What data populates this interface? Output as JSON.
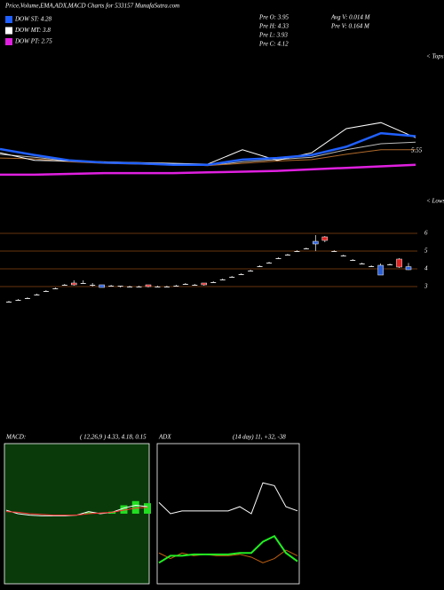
{
  "chart_data": [
    {
      "type": "candlestick",
      "title": "Price,Volume,EMA,ADX,MACD Charts for 533157 MunafaSutra.com",
      "legend": [
        {
          "text": "DOW ST: 4.28",
          "color": "#2060ff"
        },
        {
          "text": "DOW MT: 3.8",
          "color": "#ffffff"
        },
        {
          "text": "DOW PT: 2.75",
          "color": "#e020e0"
        }
      ],
      "info": [
        "Pre  O: 3.95",
        "Pre  H: 4.33",
        "Pre  L: 3.93",
        "Pre  C: 4.12"
      ],
      "volume_info": [
        "Avg V: 0.014  M",
        "Pre  V: 0.164  M"
      ],
      "up_color": "#2a5fd8",
      "down_color": "#e02020",
      "open": [
        2.1,
        2.2,
        2.3,
        2.5,
        2.7,
        2.85,
        3.05,
        3.2,
        3.15,
        3.1,
        2.95,
        3.05,
        3.05,
        3.0,
        3.0,
        3.1,
        3.0,
        3.0,
        3.0,
        3.1,
        3.05,
        3.2,
        3.2,
        3.35,
        3.5,
        3.65,
        3.85,
        4.1,
        4.3,
        4.55,
        4.75,
        4.95,
        5.1,
        5.4,
        5.8,
        5.0,
        4.75,
        4.5,
        4.3,
        4.15,
        3.65,
        4.25,
        4.55,
        3.95
      ],
      "high": [
        2.2,
        2.3,
        2.4,
        2.6,
        2.8,
        2.95,
        3.15,
        3.35,
        3.35,
        3.2,
        3.1,
        3.1,
        3.05,
        3.05,
        3.05,
        3.1,
        3.05,
        3.05,
        3.1,
        3.2,
        3.15,
        3.2,
        3.3,
        3.45,
        3.6,
        3.75,
        3.95,
        4.2,
        4.4,
        4.65,
        4.85,
        5.05,
        5.2,
        5.9,
        5.85,
        5.05,
        4.8,
        4.55,
        4.35,
        4.2,
        4.3,
        4.3,
        4.6,
        4.33
      ],
      "low": [
        2.1,
        2.2,
        2.3,
        2.5,
        2.7,
        2.85,
        3.05,
        3.05,
        3.15,
        3.0,
        2.95,
        3.0,
        2.95,
        2.95,
        2.95,
        2.95,
        2.95,
        2.95,
        3.0,
        3.1,
        3.05,
        3.05,
        3.2,
        3.35,
        3.5,
        3.65,
        3.85,
        4.1,
        4.3,
        4.55,
        4.75,
        4.95,
        5.1,
        5.0,
        5.5,
        4.95,
        4.7,
        4.45,
        4.25,
        4.1,
        3.65,
        4.2,
        4.05,
        3.93
      ],
      "close": [
        2.15,
        2.25,
        2.35,
        2.55,
        2.75,
        2.9,
        3.1,
        3.1,
        3.2,
        3.1,
        3.1,
        3.05,
        3.0,
        3.0,
        3.0,
        3.0,
        3.0,
        3.0,
        3.05,
        3.15,
        3.1,
        3.1,
        3.25,
        3.4,
        3.55,
        3.7,
        3.9,
        4.15,
        4.35,
        4.6,
        4.8,
        5.0,
        5.15,
        5.55,
        5.6,
        5.0,
        4.75,
        4.5,
        4.3,
        4.15,
        4.2,
        4.25,
        4.1,
        4.12
      ],
      "ylim": [
        1.9,
        6.4
      ],
      "yticks": [
        6,
        5,
        4,
        3
      ],
      "grid_color": "#8b4513"
    },
    {
      "type": "line",
      "tops_label": "< Tops",
      "lows_label": "< Lows",
      "last_label": "5.55",
      "ylim": [
        0,
        10
      ],
      "series": [
        {
          "color": "#bbbbbb",
          "values": [
            3.3,
            3.1,
            2.85,
            2.75,
            2.7,
            2.6,
            2.55,
            2.8,
            2.95,
            3.1,
            3.6,
            4.0,
            4.1
          ]
        },
        {
          "color": "#b06a2a",
          "values": [
            3.05,
            3.0,
            2.8,
            2.7,
            2.65,
            2.6,
            2.55,
            2.7,
            2.85,
            2.95,
            3.3,
            3.6,
            3.6
          ]
        },
        {
          "color": "#ffffff",
          "values": [
            3.4,
            2.9,
            2.85,
            2.8,
            2.75,
            2.7,
            2.65,
            3.6,
            2.9,
            3.4,
            5.0,
            5.4,
            4.4
          ]
        },
        {
          "color": "#2060ff",
          "values": [
            3.65,
            3.25,
            2.9,
            2.75,
            2.7,
            2.6,
            2.6,
            2.95,
            3.05,
            3.25,
            3.8,
            4.7,
            4.5
          ]
        },
        {
          "color": "#e020e0",
          "values": [
            1.95,
            1.95,
            2.0,
            2.05,
            2.05,
            2.05,
            2.1,
            2.15,
            2.2,
            2.3,
            2.4,
            2.5,
            2.6
          ]
        }
      ]
    },
    {
      "type": "macd",
      "title": "MACD:",
      "subtitle": "( 12,26,9 ) 4.33, 4.18, 0.15",
      "ylim": [
        -1,
        1
      ],
      "background": "#0a3a0a",
      "histogram": {
        "color": "#22dd22",
        "values": [
          0,
          0,
          0,
          0,
          0,
          0,
          0,
          0.02,
          0,
          0.03,
          0.12,
          0.18,
          0.15
        ]
      },
      "series": [
        {
          "color": "#ffffff",
          "values": [
            0.05,
            0.0,
            -0.02,
            -0.03,
            -0.03,
            -0.03,
            -0.02,
            0.03,
            0.0,
            0.02,
            0.08,
            0.12,
            0.1
          ]
        },
        {
          "color": "#ff3030",
          "values": [
            0.03,
            0.02,
            0.0,
            -0.01,
            -0.02,
            -0.02,
            -0.02,
            0.0,
            0.01,
            0.02,
            0.05,
            0.08,
            0.09
          ]
        }
      ]
    },
    {
      "type": "adx",
      "title": "ADX",
      "subtitle": "(14  day) 11, +32, -38",
      "ylim": [
        0,
        100
      ],
      "background": "#000000",
      "series": [
        {
          "color": "#ffffff",
          "values": [
            58,
            50,
            52,
            52,
            52,
            52,
            52,
            55,
            50,
            72,
            70,
            55,
            52
          ]
        },
        {
          "color": "#c06010",
          "values": [
            22,
            18,
            22,
            20,
            21,
            20,
            20,
            21,
            19,
            15,
            18,
            24,
            20
          ]
        },
        {
          "color": "#22ee22",
          "values": [
            15,
            20,
            20,
            21,
            21,
            21,
            21,
            22,
            22,
            30,
            34,
            22,
            16
          ]
        }
      ]
    }
  ]
}
